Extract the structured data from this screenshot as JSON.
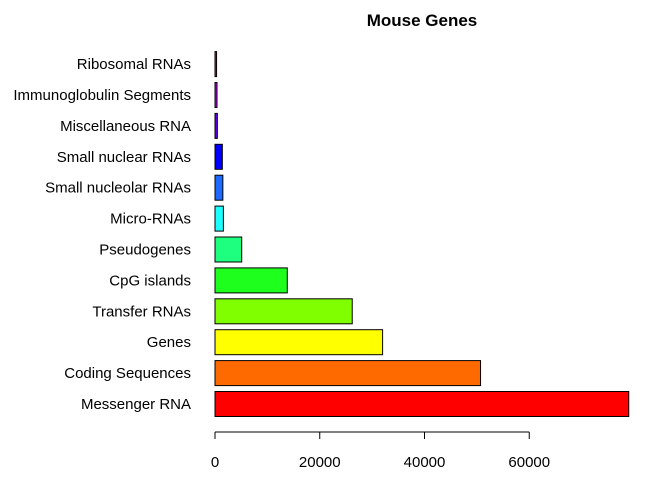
{
  "chart_data": {
    "type": "bar",
    "orientation": "horizontal",
    "title": "Mouse Genes",
    "xlabel": "",
    "ylabel": "",
    "categories": [
      "Messenger RNA",
      "Coding Sequences",
      "Genes",
      "Transfer RNAs",
      "CpG islands",
      "Pseudogenes",
      "Micro-RNAs",
      "Small nucleolar RNAs",
      "Small nuclear RNAs",
      "Miscellaneous RNA",
      "Immunoglobulin Segments",
      "Ribosomal RNAs"
    ],
    "values": [
      79000,
      50700,
      32000,
      26200,
      13800,
      5100,
      1600,
      1500,
      1400,
      450,
      380,
      300
    ],
    "colors": [
      "#FF0000",
      "#FF6A00",
      "#FFFF00",
      "#80FF00",
      "#1EFF1E",
      "#1EFF80",
      "#1EFFFF",
      "#1E6AFF",
      "#0000FF",
      "#6A00FF",
      "#CC00FF",
      "#FF006A"
    ],
    "xlim": [
      0,
      80000
    ],
    "xticks": [
      0,
      20000,
      40000,
      60000
    ],
    "xtick_labels": [
      "0",
      "20000",
      "40000",
      "60000"
    ],
    "grid": false,
    "legend": "none"
  }
}
